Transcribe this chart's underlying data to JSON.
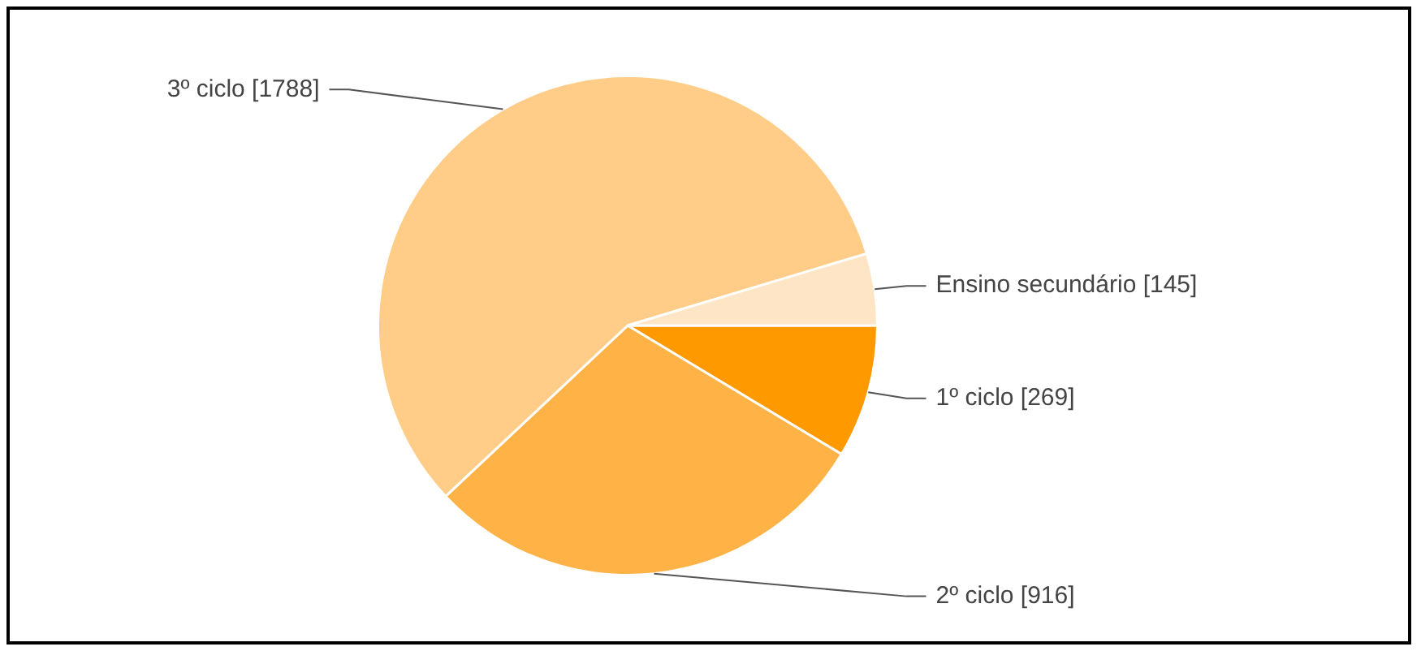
{
  "chart_data": {
    "type": "pie",
    "categories": [
      "1º ciclo",
      "2º ciclo",
      "3º ciclo",
      "Ensino secundário"
    ],
    "values": [
      269,
      916,
      1788,
      145
    ],
    "colors": [
      "#ff9900",
      "#ffb347",
      "#ffcd88",
      "#fde5c5"
    ],
    "value_labels": [
      "[269]",
      "[916]",
      "[1788]",
      "[145]"
    ]
  }
}
